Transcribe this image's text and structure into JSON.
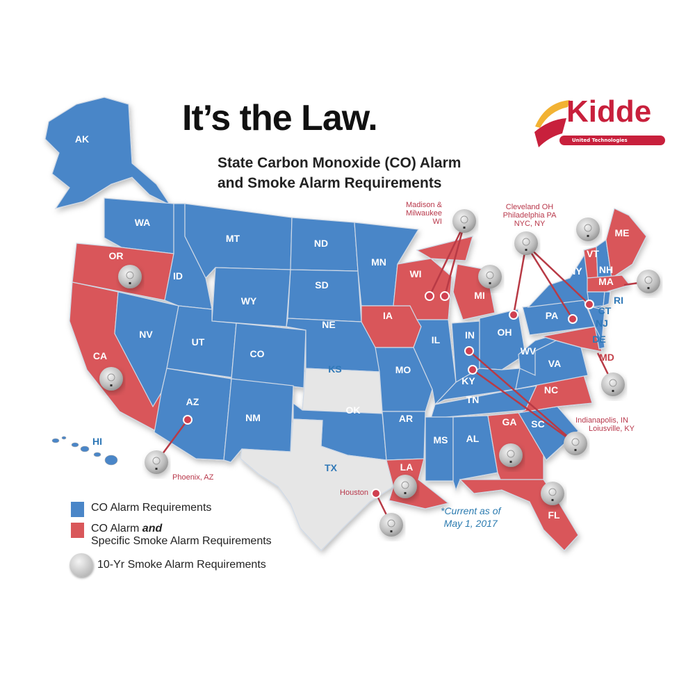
{
  "title": "It’s the Law.",
  "subtitle_line1": "State Carbon Monoxide (CO) Alarm",
  "subtitle_line2": "and Smoke Alarm Requirements",
  "logo": {
    "word": "Kidde",
    "tagline": "United Technologies"
  },
  "colors": {
    "co": "#4a86c8",
    "co_smoke": "#d9575a",
    "none": "#e6e6e6",
    "city": "#b8374a",
    "note": "#2b7bb0",
    "brand": "#c8203c"
  },
  "legend": {
    "co": "CO Alarm Requirements",
    "co_smoke_a": "CO Alarm ",
    "co_smoke_b": "and",
    "co_smoke_c": "Specific Smoke Alarm Requirements",
    "ten_yr": "10-Yr Smoke Alarm Requirements"
  },
  "note_line1": "*Current as of",
  "note_line2": "May 1, 2017",
  "states": [
    {
      "code": "AK",
      "cat": "co"
    },
    {
      "code": "HI",
      "cat": "co"
    },
    {
      "code": "WA",
      "cat": "co"
    },
    {
      "code": "OR",
      "cat": "co_smoke"
    },
    {
      "code": "CA",
      "cat": "co_smoke"
    },
    {
      "code": "NV",
      "cat": "co"
    },
    {
      "code": "ID",
      "cat": "co"
    },
    {
      "code": "MT",
      "cat": "co"
    },
    {
      "code": "WY",
      "cat": "co"
    },
    {
      "code": "UT",
      "cat": "co"
    },
    {
      "code": "CO",
      "cat": "co"
    },
    {
      "code": "AZ",
      "cat": "co"
    },
    {
      "code": "NM",
      "cat": "co"
    },
    {
      "code": "ND",
      "cat": "co"
    },
    {
      "code": "SD",
      "cat": "co"
    },
    {
      "code": "NE",
      "cat": "co"
    },
    {
      "code": "KS",
      "cat": "none"
    },
    {
      "code": "OK",
      "cat": "co"
    },
    {
      "code": "TX",
      "cat": "none"
    },
    {
      "code": "MN",
      "cat": "co"
    },
    {
      "code": "IA",
      "cat": "co_smoke"
    },
    {
      "code": "MO",
      "cat": "co"
    },
    {
      "code": "AR",
      "cat": "co"
    },
    {
      "code": "LA",
      "cat": "co_smoke"
    },
    {
      "code": "WI",
      "cat": "co_smoke"
    },
    {
      "code": "IL",
      "cat": "co"
    },
    {
      "code": "MI",
      "cat": "co_smoke"
    },
    {
      "code": "IN",
      "cat": "co"
    },
    {
      "code": "OH",
      "cat": "co"
    },
    {
      "code": "KY",
      "cat": "co"
    },
    {
      "code": "TN",
      "cat": "co"
    },
    {
      "code": "MS",
      "cat": "co"
    },
    {
      "code": "AL",
      "cat": "co"
    },
    {
      "code": "GA",
      "cat": "co_smoke"
    },
    {
      "code": "FL",
      "cat": "co_smoke"
    },
    {
      "code": "SC",
      "cat": "co"
    },
    {
      "code": "NC",
      "cat": "co_smoke"
    },
    {
      "code": "VA",
      "cat": "co"
    },
    {
      "code": "WV",
      "cat": "co"
    },
    {
      "code": "PA",
      "cat": "co"
    },
    {
      "code": "NY",
      "cat": "co"
    },
    {
      "code": "MD",
      "cat": "co_smoke"
    },
    {
      "code": "DE",
      "cat": "co"
    },
    {
      "code": "NJ",
      "cat": "co"
    },
    {
      "code": "VT",
      "cat": "co_smoke"
    },
    {
      "code": "NH",
      "cat": "co"
    },
    {
      "code": "ME",
      "cat": "co_smoke"
    },
    {
      "code": "MA",
      "cat": "co_smoke"
    },
    {
      "code": "CT",
      "cat": "co"
    },
    {
      "code": "RI",
      "cat": "co"
    }
  ],
  "ten_year_states": [
    "OR",
    "CA",
    "MI",
    "VT",
    "MA",
    "MD",
    "GA",
    "FL",
    "LA"
  ],
  "cities": [
    {
      "label": "Phoenix, AZ"
    },
    {
      "label": "Houston"
    },
    {
      "label": "Madison & Milwaukee WI"
    },
    {
      "label": "Cleveland OH Philadelphia PA NYC, NY"
    },
    {
      "label": "Indianapolis, IN Loiusville, KY"
    }
  ]
}
